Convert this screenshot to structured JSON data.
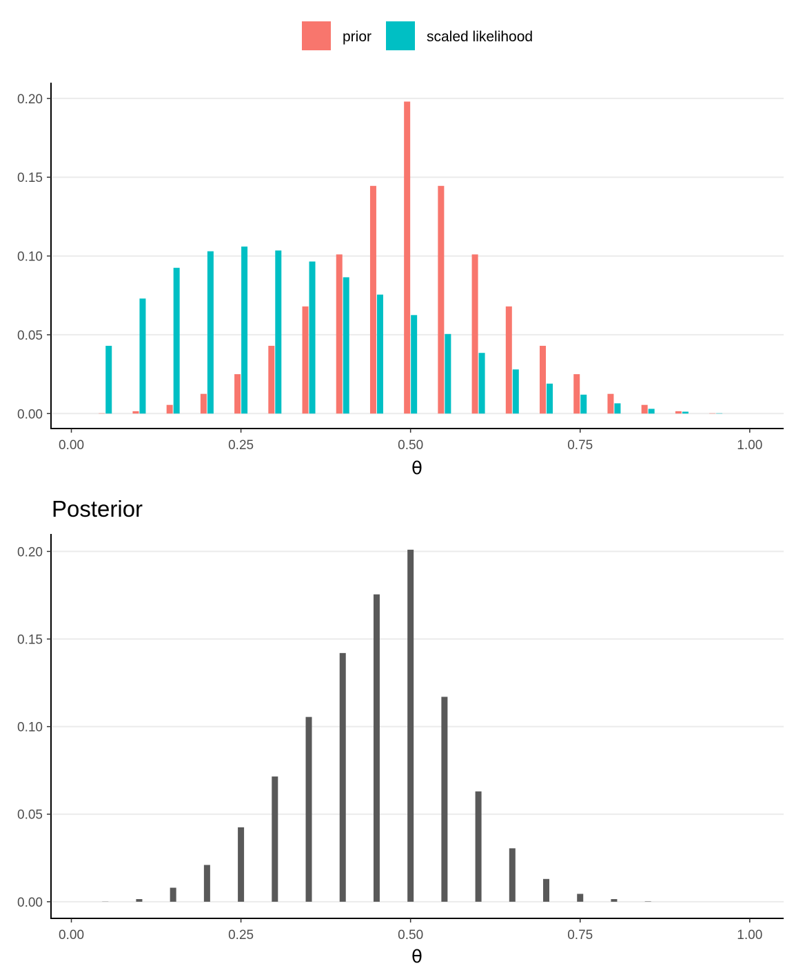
{
  "colors": {
    "prior": "#F8766D",
    "likelihood": "#00BFC4",
    "posterior": "#595959",
    "grid": "#EBEBEB",
    "axis": "#000000",
    "tick_text": "#4D4D4D"
  },
  "legend": {
    "prior_label": "prior",
    "likelihood_label": "scaled likelihood"
  },
  "chart_data": [
    {
      "type": "bar",
      "title": "",
      "xlabel": "θ",
      "ylabel": "",
      "xlim": [
        -0.03,
        1.05
      ],
      "ylim": [
        -0.0095,
        0.21
      ],
      "x_ticks": [
        0,
        0.25,
        0.5,
        0.75,
        1
      ],
      "x_tick_labels": [
        "0.00",
        "0.25",
        "0.50",
        "0.75",
        "1.00"
      ],
      "y_ticks": [
        0,
        0.05,
        0.1,
        0.15,
        0.2
      ],
      "y_tick_labels": [
        "0.00",
        "0.05",
        "0.10",
        "0.15",
        "0.20"
      ],
      "grid": "horizontal",
      "legend_position": "top",
      "x": [
        0,
        0.05,
        0.1,
        0.15,
        0.2,
        0.25,
        0.3,
        0.35,
        0.4,
        0.45,
        0.5,
        0.55,
        0.6,
        0.65,
        0.7,
        0.75,
        0.8,
        0.85,
        0.9,
        0.95,
        1
      ],
      "series": [
        {
          "name": "prior",
          "color": "#F8766D",
          "values": [
            0,
            0.0002,
            0.0015,
            0.0055,
            0.0125,
            0.025,
            0.043,
            0.068,
            0.101,
            0.1445,
            0.198,
            0.1445,
            0.101,
            0.068,
            0.043,
            0.025,
            0.0125,
            0.0055,
            0.0015,
            0.0002,
            0
          ]
        },
        {
          "name": "scaled likelihood",
          "color": "#00BFC4",
          "values": [
            0,
            0.043,
            0.073,
            0.0925,
            0.103,
            0.106,
            0.1035,
            0.0965,
            0.0865,
            0.0755,
            0.0625,
            0.0505,
            0.0385,
            0.028,
            0.019,
            0.012,
            0.0065,
            0.003,
            0.0012,
            0.0002,
            0
          ]
        }
      ]
    },
    {
      "type": "bar",
      "title": "Posterior",
      "xlabel": "θ",
      "ylabel": "",
      "xlim": [
        -0.03,
        1.05
      ],
      "ylim": [
        -0.0095,
        0.21
      ],
      "x_ticks": [
        0,
        0.25,
        0.5,
        0.75,
        1
      ],
      "x_tick_labels": [
        "0.00",
        "0.25",
        "0.50",
        "0.75",
        "1.00"
      ],
      "y_ticks": [
        0,
        0.05,
        0.1,
        0.15,
        0.2
      ],
      "y_tick_labels": [
        "0.00",
        "0.05",
        "0.10",
        "0.15",
        "0.20"
      ],
      "grid": "horizontal",
      "x": [
        0,
        0.05,
        0.1,
        0.15,
        0.2,
        0.25,
        0.3,
        0.35,
        0.4,
        0.45,
        0.5,
        0.55,
        0.6,
        0.65,
        0.7,
        0.75,
        0.8,
        0.85,
        0.9,
        0.95,
        1
      ],
      "series": [
        {
          "color": "#595959",
          "values": [
            0,
            0.0001,
            0.0015,
            0.008,
            0.021,
            0.0425,
            0.0715,
            0.1055,
            0.142,
            0.1755,
            0.201,
            0.117,
            0.063,
            0.0305,
            0.013,
            0.0045,
            0.0015,
            0.0002,
            0,
            0,
            0
          ]
        }
      ]
    }
  ]
}
